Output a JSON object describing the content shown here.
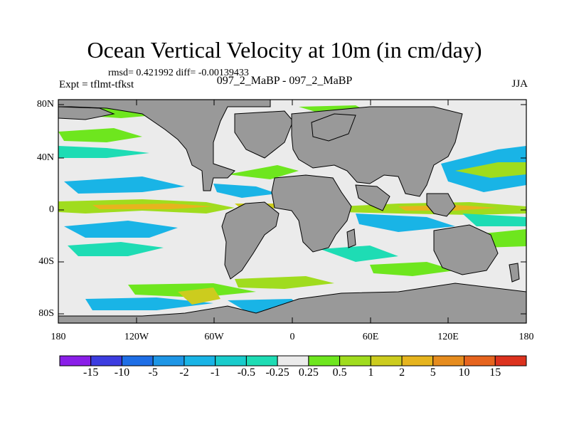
{
  "title": "Ocean Vertical Velocity at 10m (in cm/day)",
  "stats_line": "rmsd= 0.421992 diff= -0.00139433",
  "subtitle": "097_2_MaBP - 097_2_MaBP",
  "expt_label": "Expt = tflmt-tfkst",
  "season": "JJA",
  "lat_labels": [
    "80N",
    "40N",
    "0",
    "40S",
    "80S"
  ],
  "lon_labels": [
    "180",
    "120W",
    "60W",
    "0",
    "60E",
    "120E",
    "180"
  ],
  "colorbar": {
    "labels": [
      "-15",
      "-10",
      "-5",
      "-2",
      "-1",
      "-0.5",
      "-0.25",
      "0.25",
      "0.5",
      "1",
      "2",
      "5",
      "10",
      "15"
    ],
    "colors": [
      "#8a1ee8",
      "#3c3ce0",
      "#1e6ee6",
      "#1e96e6",
      "#19b4e6",
      "#19cccc",
      "#1edcb4",
      "#ebebeb",
      "#6ee61e",
      "#a0dc1e",
      "#cccc1e",
      "#e6b41e",
      "#e68c1e",
      "#e6641e",
      "#dc321e"
    ]
  },
  "colors": {
    "land": "#999999",
    "ocean_neutral": "#ebebeb",
    "up_weak": "#6ee61e",
    "up_mid": "#cccc1e",
    "up_strong": "#e6b41e",
    "down_weak": "#1edcb4",
    "down_mid": "#19b4e6",
    "down_strong": "#1e96e6"
  }
}
